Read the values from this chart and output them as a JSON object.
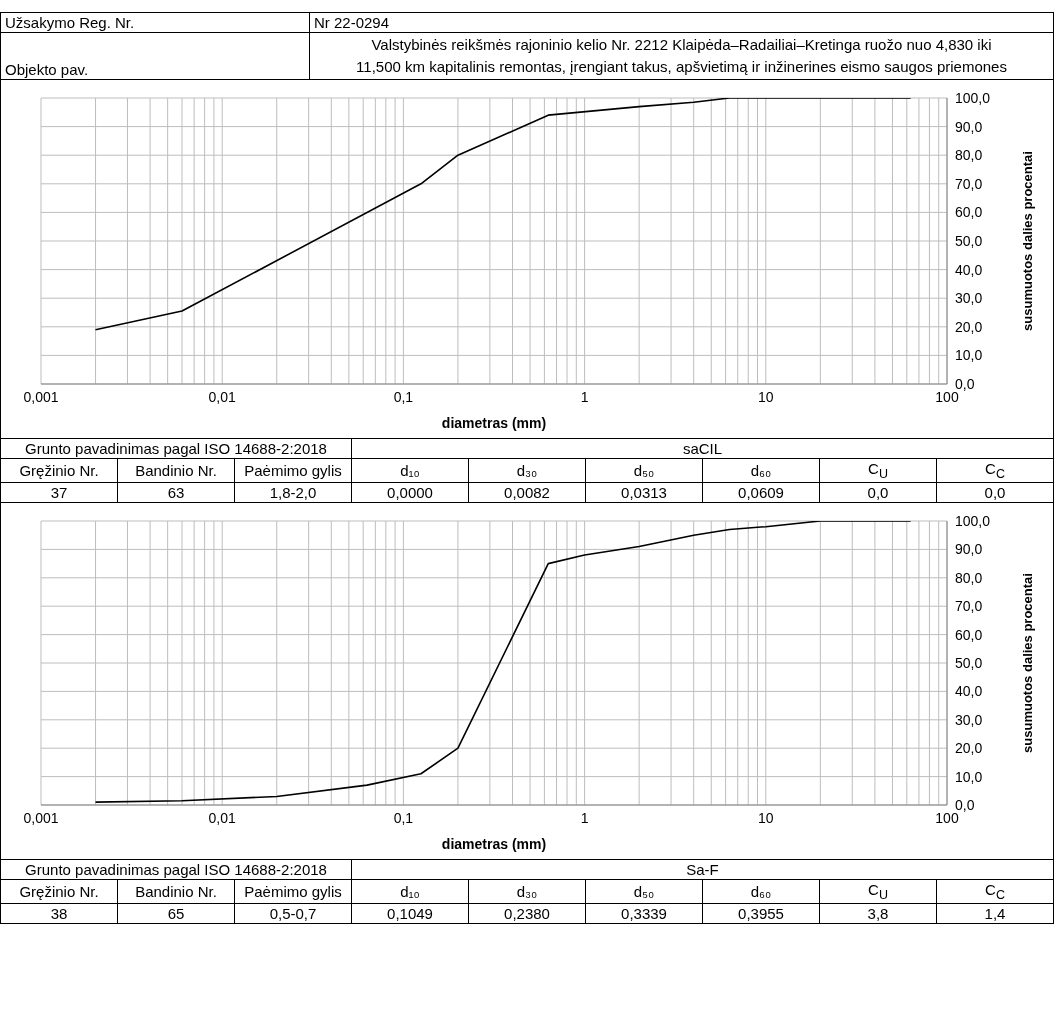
{
  "chart_data": [
    {
      "type": "line",
      "xlabel": "diametras (mm)",
      "ylabel": "susumuotos dalies procentai",
      "log": "x",
      "grid": true,
      "marker": "none",
      "line_style": "solid",
      "xlim": [
        0.001,
        100
      ],
      "ylim": [
        0,
        100
      ],
      "xticks": [
        {
          "value": 0.001,
          "label": "0,001"
        },
        {
          "value": 0.002,
          "label": null
        },
        {
          "value": 0.003,
          "label": null
        },
        {
          "value": 0.004,
          "label": null
        },
        {
          "value": 0.005,
          "label": null
        },
        {
          "value": 0.006,
          "label": null
        },
        {
          "value": 0.007,
          "label": null
        },
        {
          "value": 0.008,
          "label": null
        },
        {
          "value": 0.009,
          "label": null
        },
        {
          "value": 0.01,
          "label": "0,01"
        },
        {
          "value": 0.02,
          "label": null
        },
        {
          "value": 0.03,
          "label": null
        },
        {
          "value": 0.04,
          "label": null
        },
        {
          "value": 0.05,
          "label": null
        },
        {
          "value": 0.06,
          "label": null
        },
        {
          "value": 0.07,
          "label": null
        },
        {
          "value": 0.08,
          "label": null
        },
        {
          "value": 0.09,
          "label": null
        },
        {
          "value": 0.1,
          "label": "0,1"
        },
        {
          "value": 0.2,
          "label": null
        },
        {
          "value": 0.3,
          "label": null
        },
        {
          "value": 0.4,
          "label": null
        },
        {
          "value": 0.5,
          "label": null
        },
        {
          "value": 0.6,
          "label": null
        },
        {
          "value": 0.7,
          "label": null
        },
        {
          "value": 0.8,
          "label": null
        },
        {
          "value": 0.9,
          "label": null
        },
        1,
        {
          "value": 2,
          "label": null
        },
        {
          "value": 3,
          "label": null
        },
        {
          "value": 4,
          "label": null
        },
        {
          "value": 5,
          "label": null
        },
        {
          "value": 6,
          "label": null
        },
        {
          "value": 7,
          "label": null
        },
        {
          "value": 8,
          "label": null
        },
        {
          "value": 9,
          "label": null
        },
        10,
        {
          "value": 20,
          "label": null
        },
        {
          "value": 30,
          "label": null
        },
        {
          "value": 40,
          "label": null
        },
        {
          "value": 50,
          "label": null
        },
        {
          "value": 60,
          "label": null
        },
        {
          "value": 70,
          "label": null
        },
        {
          "value": 80,
          "label": null
        },
        {
          "value": 90,
          "label": null
        },
        100
      ],
      "yticks": [
        {
          "value": 0,
          "label": "0,0"
        },
        {
          "value": 10,
          "label": "10,0"
        },
        {
          "value": 20,
          "label": "20,0"
        },
        {
          "value": 30,
          "label": "30,0"
        },
        {
          "value": 40,
          "label": "40,0"
        },
        {
          "value": 50,
          "label": "50,0"
        },
        {
          "value": 60,
          "label": "60,0"
        },
        {
          "value": 70,
          "label": "70,0"
        },
        {
          "value": 80,
          "label": "80,0"
        },
        {
          "value": 90,
          "label": "90,0"
        },
        {
          "value": 100,
          "label": "100,0"
        }
      ],
      "series": [
        {
          "color": "#000000",
          "x": [
            0.002,
            0.006,
            0.125,
            0.2,
            0.63,
            2,
            4,
            6.3,
            63
          ],
          "values": [
            19,
            25.5,
            70,
            80,
            94,
            97,
            98.5,
            100,
            100
          ]
        }
      ],
      "annotations": [
        "Užsakymo Reg. Nr.",
        "Nr 22-0294",
        "Objekto pav.",
        "Valstybinės reikšmės rajoninio kelio Nr. 2212 Klaipėda–Radailiai–Kretinga ruožo nuo 4,830 iki 11,500 km kapitalinis remontas, įrengiant takus, apšvietimą ir inžinerines eismo saugos priemones",
        "Grunto pavadinimas pagal ISO 14688-2:2018",
        "saCIL",
        "Gręžinio Nr.",
        "Bandinio Nr.",
        "Paėmimo gylis",
        "d₁₀",
        "d₃₀",
        "d₅₀",
        "d₆₀",
        "C$_{U}$",
        "C$_{C}$",
        "37",
        "63",
        "1,8-2,0",
        "0,0000",
        "0,0082",
        "0,0313",
        "0,0609",
        "0,0",
        "0,0"
      ]
    },
    {
      "type": "line",
      "xlabel": "diametras (mm)",
      "ylabel": "susumuotos dalies procentai",
      "log": "x",
      "grid": true,
      "marker": "none",
      "line_style": "solid",
      "xlim": [
        0.001,
        100
      ],
      "ylim": [
        0,
        100
      ],
      "xticks": [
        {
          "value": 0.001,
          "label": "0,001"
        },
        {
          "value": 0.002,
          "label": null
        },
        {
          "value": 0.003,
          "label": null
        },
        {
          "value": 0.004,
          "label": null
        },
        {
          "value": 0.005,
          "label": null
        },
        {
          "value": 0.006,
          "label": null
        },
        {
          "value": 0.007,
          "label": null
        },
        {
          "value": 0.008,
          "label": null
        },
        {
          "value": 0.009,
          "label": null
        },
        {
          "value": 0.01,
          "label": "0,01"
        },
        {
          "value": 0.02,
          "label": null
        },
        {
          "value": 0.03,
          "label": null
        },
        {
          "value": 0.04,
          "label": null
        },
        {
          "value": 0.05,
          "label": null
        },
        {
          "value": 0.06,
          "label": null
        },
        {
          "value": 0.07,
          "label": null
        },
        {
          "value": 0.08,
          "label": null
        },
        {
          "value": 0.09,
          "label": null
        },
        {
          "value": 0.1,
          "label": "0,1"
        },
        {
          "value": 0.2,
          "label": null
        },
        {
          "value": 0.3,
          "label": null
        },
        {
          "value": 0.4,
          "label": null
        },
        {
          "value": 0.5,
          "label": null
        },
        {
          "value": 0.6,
          "label": null
        },
        {
          "value": 0.7,
          "label": null
        },
        {
          "value": 0.8,
          "label": null
        },
        {
          "value": 0.9,
          "label": null
        },
        1,
        {
          "value": 2,
          "label": null
        },
        {
          "value": 3,
          "label": null
        },
        {
          "value": 4,
          "label": null
        },
        {
          "value": 5,
          "label": null
        },
        {
          "value": 6,
          "label": null
        },
        {
          "value": 7,
          "label": null
        },
        {
          "value": 8,
          "label": null
        },
        {
          "value": 9,
          "label": null
        },
        10,
        {
          "value": 20,
          "label": null
        },
        {
          "value": 30,
          "label": null
        },
        {
          "value": 40,
          "label": null
        },
        {
          "value": 50,
          "label": null
        },
        {
          "value": 60,
          "label": null
        },
        {
          "value": 70,
          "label": null
        },
        {
          "value": 80,
          "label": null
        },
        {
          "value": 90,
          "label": null
        },
        100
      ],
      "yticks": [
        {
          "value": 0,
          "label": "0,0"
        },
        {
          "value": 10,
          "label": "10,0"
        },
        {
          "value": 20,
          "label": "20,0"
        },
        {
          "value": 30,
          "label": "30,0"
        },
        {
          "value": 40,
          "label": "40,0"
        },
        {
          "value": 50,
          "label": "50,0"
        },
        {
          "value": 60,
          "label": "60,0"
        },
        {
          "value": 70,
          "label": "70,0"
        },
        {
          "value": 80,
          "label": "80,0"
        },
        {
          "value": 90,
          "label": "90,0"
        },
        {
          "value": 100,
          "label": "100,0"
        }
      ],
      "series": [
        {
          "color": "#000000",
          "x": [
            0.002,
            0.006,
            0.02,
            0.063,
            0.125,
            0.2,
            0.63,
            1,
            2,
            4,
            6.3,
            10,
            20,
            63
          ],
          "values": [
            1,
            1.5,
            3,
            7,
            11,
            20,
            85,
            88,
            91,
            95,
            97,
            98,
            100,
            100
          ]
        }
      ],
      "annotations": [
        "Grunto pavadinimas pagal ISO 14688-2:2018",
        "Sa-F",
        "Gręžinio Nr.",
        "Bandinio Nr.",
        "Paėmimo gylis",
        "d₁₀",
        "d₃₀",
        "d₅₀",
        "d₆₀",
        "C$_{U}$",
        "C$_{C}$",
        "38",
        "65",
        "0,5-0,7",
        "0,1049",
        "0,2380",
        "0,3339",
        "0,3955",
        "3,8",
        "1,4"
      ]
    }
  ]
}
